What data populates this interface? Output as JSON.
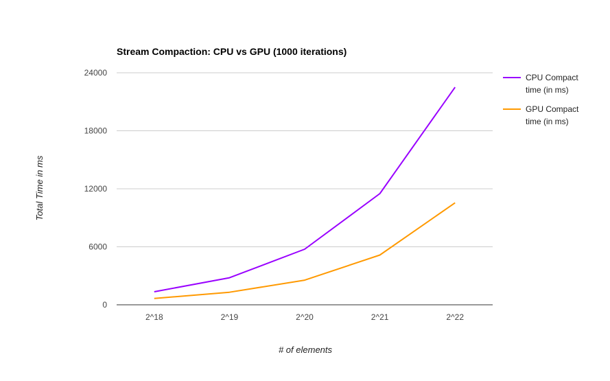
{
  "chart_data": {
    "type": "line",
    "title": "Stream Compaction: CPU vs GPU (1000 iterations)",
    "xlabel": "# of elements",
    "ylabel": "Total Time in ms",
    "categories": [
      "2^18",
      "2^19",
      "2^20",
      "2^21",
      "2^22"
    ],
    "ylim": [
      0,
      24000
    ],
    "yticks": [
      0,
      6000,
      12000,
      18000,
      24000
    ],
    "ytick_labels": [
      "0",
      "6000",
      "12000",
      "18000",
      "24000"
    ],
    "grid": true,
    "legend_position": "right",
    "series": [
      {
        "name": "CPU Compact time (in ms)",
        "legend_lines": [
          "CPU Compact",
          "time (in ms)"
        ],
        "color": "#9900ff",
        "values": [
          1350,
          2800,
          5750,
          11500,
          22500
        ]
      },
      {
        "name": "GPU Compact time (in ms)",
        "legend_lines": [
          "GPU Compact",
          "time (in ms)"
        ],
        "color": "#ff9900",
        "values": [
          650,
          1300,
          2550,
          5150,
          10550
        ]
      }
    ]
  }
}
